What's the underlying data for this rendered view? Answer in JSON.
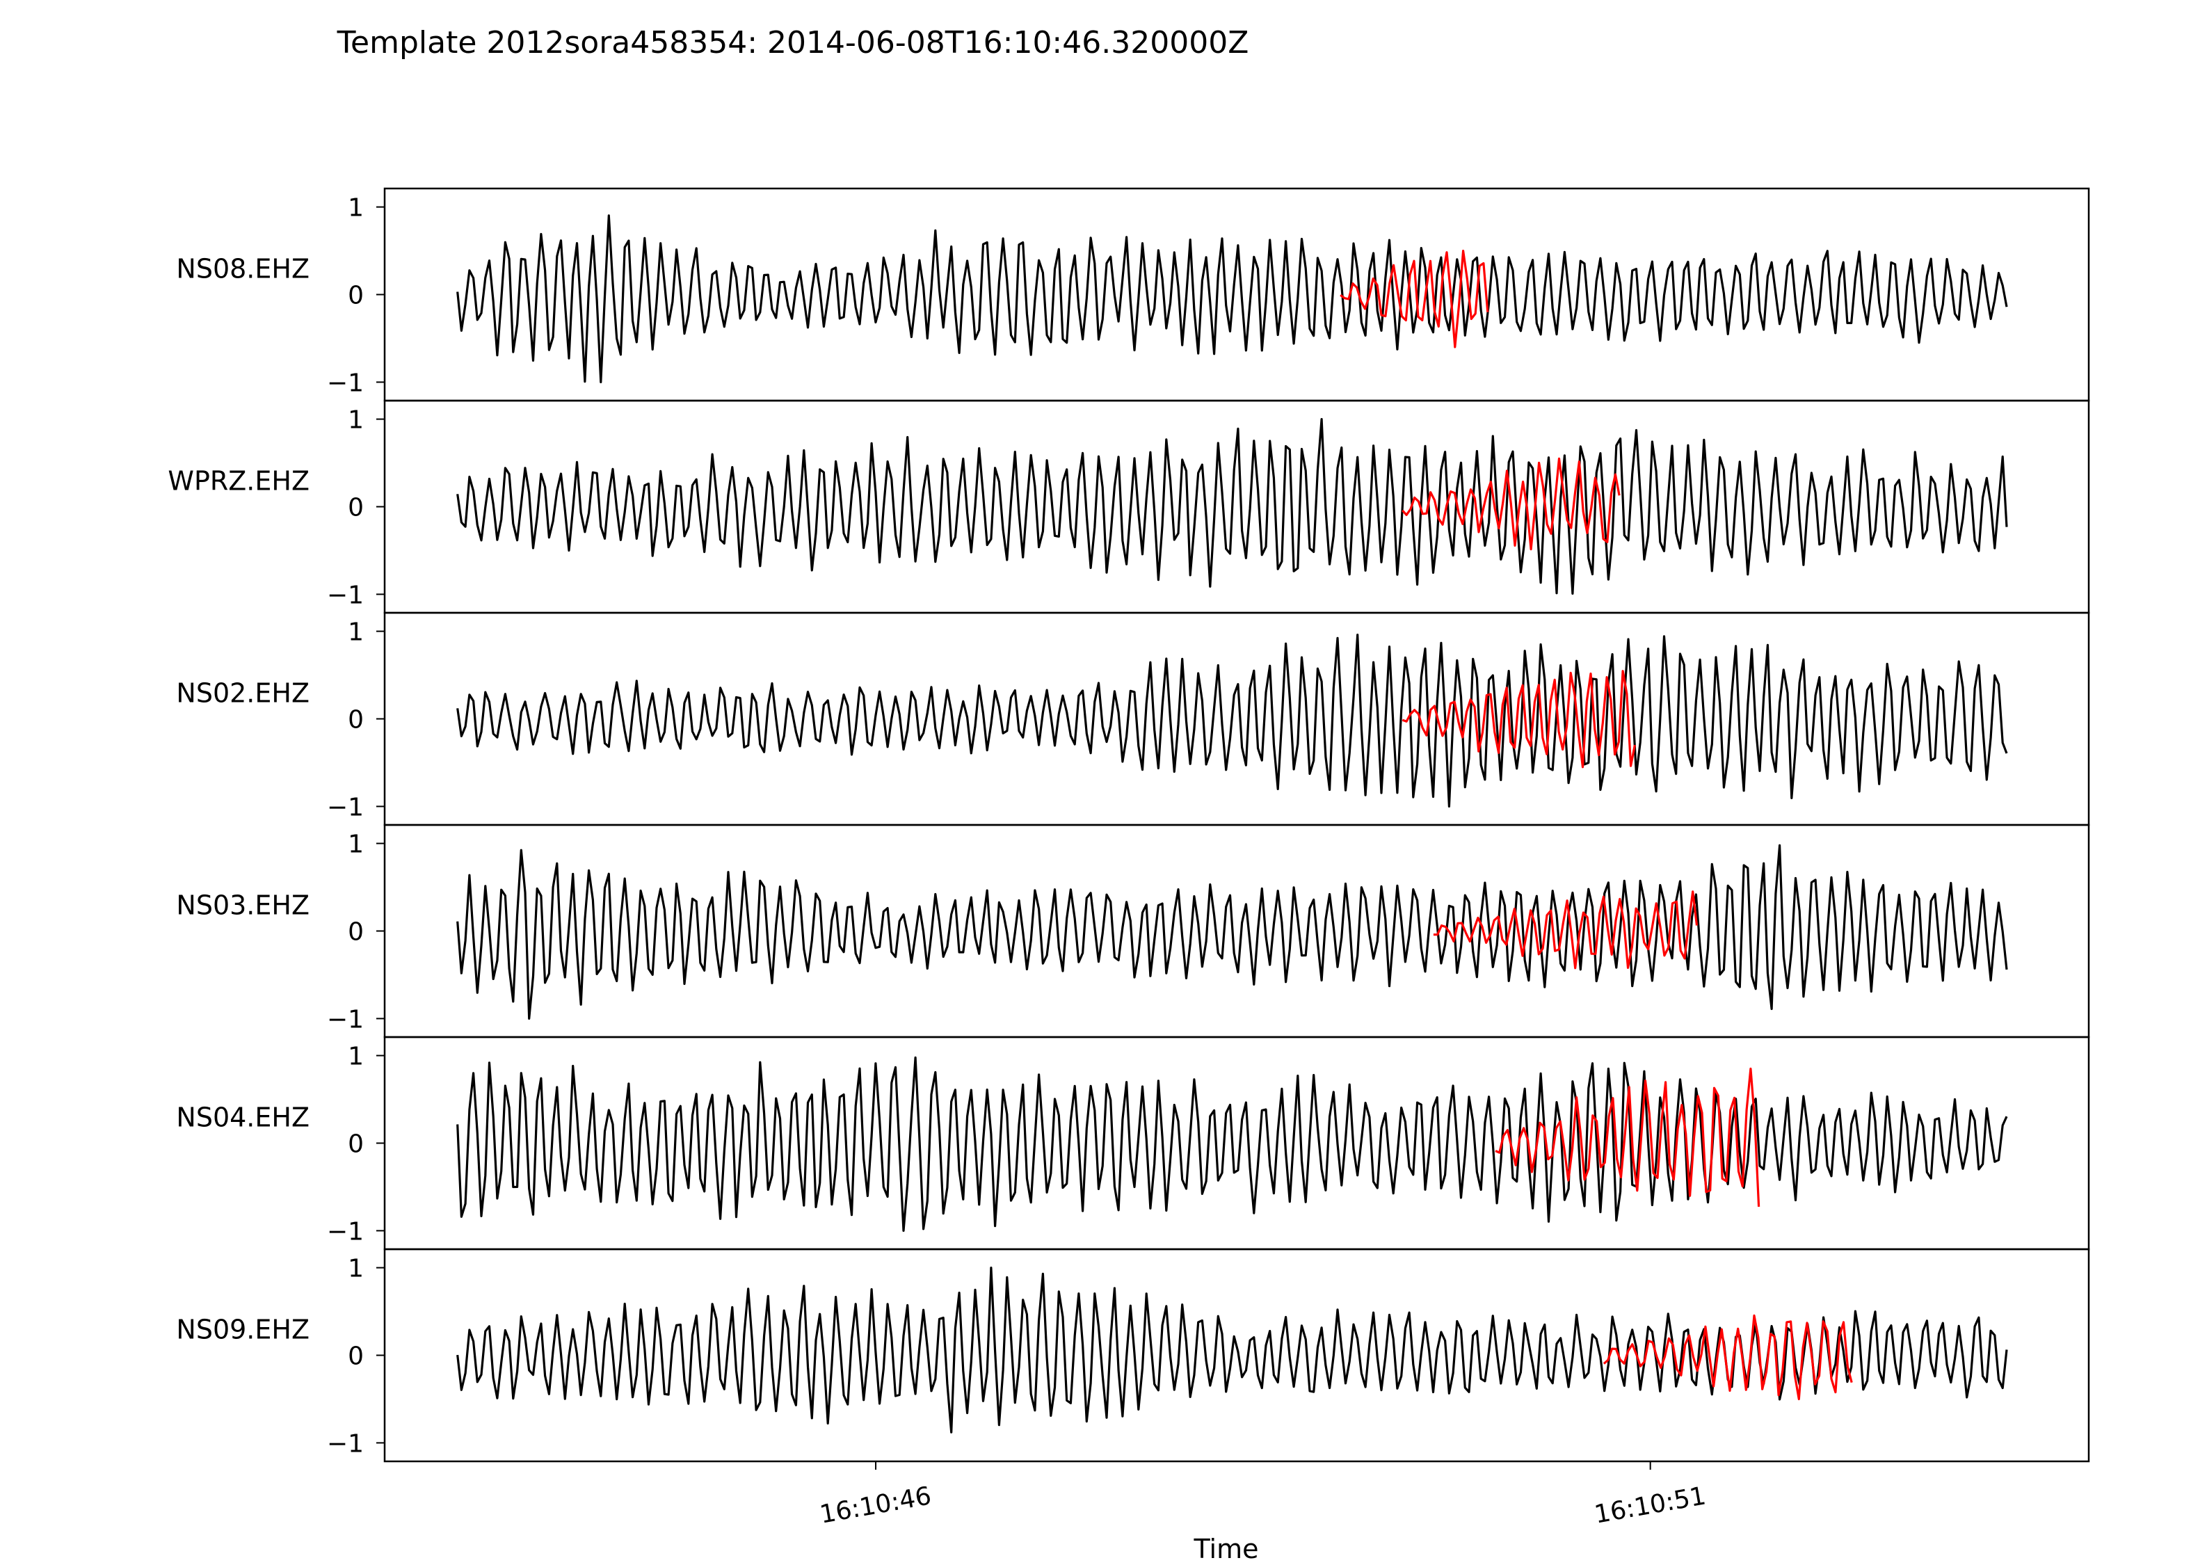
{
  "chart_data": {
    "type": "line",
    "title": "Template 2012sora458354: 2014-06-08T16:10:46.320000Z",
    "xlabel": "Time",
    "x_ticks": [
      "16:10:46",
      "16:10:51"
    ],
    "xlim_seconds": [
      -3.17,
      7.83
    ],
    "data_start_seconds": -2.7,
    "data_end_seconds": 7.3,
    "y_ticks": [
      -1,
      0,
      1
    ],
    "ylim": [
      -1.1,
      1.1
    ],
    "series_colors": {
      "data": "#000000",
      "template": "#ff0000"
    },
    "panels": [
      {
        "station": "NS08.EHZ",
        "seed": 11,
        "envelope": [
          [
            0,
            0.35
          ],
          [
            0.05,
            0.85
          ],
          [
            0.1,
            1.0
          ],
          [
            0.14,
            0.55
          ],
          [
            0.22,
            0.3
          ],
          [
            0.28,
            0.5
          ],
          [
            0.35,
            0.85
          ],
          [
            0.42,
            0.6
          ],
          [
            0.5,
            0.75
          ],
          [
            0.58,
            0.6
          ],
          [
            0.7,
            0.5
          ],
          [
            0.8,
            0.55
          ],
          [
            0.92,
            0.55
          ],
          [
            1,
            0.35
          ]
        ],
        "template_start": 3.0,
        "template_end": 3.95,
        "template_amp": 0.6,
        "template_seed": 101
      },
      {
        "station": "WPRZ.EHZ",
        "seed": 22,
        "envelope": [
          [
            0,
            0.45
          ],
          [
            0.1,
            0.5
          ],
          [
            0.2,
            0.55
          ],
          [
            0.26,
            0.7
          ],
          [
            0.35,
            0.55
          ],
          [
            0.45,
            0.75
          ],
          [
            0.52,
            0.95
          ],
          [
            0.6,
            0.85
          ],
          [
            0.7,
            0.75
          ],
          [
            0.71,
            0.95
          ],
          [
            0.8,
            0.7
          ],
          [
            0.9,
            0.6
          ],
          [
            1,
            0.5
          ]
        ],
        "template_start": 3.4,
        "template_end": 4.8,
        "template_amp": 0.55,
        "template_seed": 202
      },
      {
        "station": "NS02.EHZ",
        "seed": 33,
        "envelope": [
          [
            0,
            0.3
          ],
          [
            0.1,
            0.35
          ],
          [
            0.2,
            0.4
          ],
          [
            0.3,
            0.35
          ],
          [
            0.38,
            0.3
          ],
          [
            0.45,
            0.65
          ],
          [
            0.5,
            0.6
          ],
          [
            0.55,
            0.9
          ],
          [
            0.6,
            0.85
          ],
          [
            0.63,
            1.0
          ],
          [
            0.7,
            0.8
          ],
          [
            0.8,
            0.85
          ],
          [
            0.9,
            0.75
          ],
          [
            1,
            0.65
          ]
        ],
        "template_start": 3.4,
        "template_end": 4.9,
        "template_amp": 0.55,
        "template_seed": 303
      },
      {
        "station": "NS03.EHZ",
        "seed": 44,
        "envelope": [
          [
            0,
            0.45
          ],
          [
            0.05,
            0.9
          ],
          [
            0.1,
            0.6
          ],
          [
            0.2,
            0.55
          ],
          [
            0.3,
            0.3
          ],
          [
            0.4,
            0.45
          ],
          [
            0.5,
            0.5
          ],
          [
            0.6,
            0.5
          ],
          [
            0.7,
            0.55
          ],
          [
            0.8,
            0.55
          ],
          [
            0.84,
            1.0
          ],
          [
            0.88,
            0.7
          ],
          [
            1,
            0.45
          ]
        ],
        "template_start": 3.6,
        "template_end": 5.3,
        "template_amp": 0.45,
        "template_seed": 404
      },
      {
        "station": "NS04.EHZ",
        "seed": 55,
        "envelope": [
          [
            0,
            0.85
          ],
          [
            0.05,
            0.9
          ],
          [
            0.1,
            0.6
          ],
          [
            0.2,
            0.75
          ],
          [
            0.3,
            0.85
          ],
          [
            0.4,
            0.75
          ],
          [
            0.5,
            0.6
          ],
          [
            0.6,
            0.55
          ],
          [
            0.7,
            0.65
          ],
          [
            0.75,
            0.95
          ],
          [
            0.8,
            0.6
          ],
          [
            0.9,
            0.45
          ],
          [
            1,
            0.35
          ]
        ],
        "template_start": 4.0,
        "template_end": 5.7,
        "template_amp": 0.85,
        "template_seed": 505
      },
      {
        "station": "NS09.EHZ",
        "seed": 66,
        "envelope": [
          [
            0,
            0.45
          ],
          [
            0.1,
            0.55
          ],
          [
            0.2,
            0.8
          ],
          [
            0.3,
            0.75
          ],
          [
            0.35,
            1.0
          ],
          [
            0.4,
            0.9
          ],
          [
            0.5,
            0.45
          ],
          [
            0.6,
            0.55
          ],
          [
            0.7,
            0.45
          ],
          [
            0.8,
            0.45
          ],
          [
            0.9,
            0.55
          ],
          [
            1,
            0.5
          ]
        ],
        "template_start": 4.7,
        "template_end": 6.3,
        "template_amp": 0.5,
        "template_seed": 606
      }
    ]
  }
}
